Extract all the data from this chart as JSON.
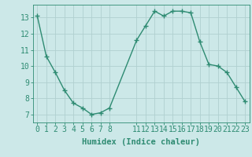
{
  "x": [
    0,
    1,
    2,
    3,
    4,
    5,
    6,
    7,
    8,
    11,
    12,
    13,
    14,
    15,
    16,
    17,
    18,
    19,
    20,
    21,
    22,
    23
  ],
  "y": [
    13.1,
    10.6,
    9.6,
    8.5,
    7.7,
    7.4,
    7.0,
    7.1,
    7.4,
    11.6,
    12.5,
    13.4,
    13.1,
    13.4,
    13.4,
    13.3,
    11.5,
    10.1,
    10.0,
    9.6,
    8.7,
    7.8
  ],
  "line_color": "#2e8b72",
  "marker": "+",
  "marker_size": 4,
  "marker_linewidth": 1.0,
  "line_width": 1.0,
  "bg_color": "#cce8e8",
  "grid_color": "#b0d0d0",
  "xlabel": "Humidex (Indice chaleur)",
  "xlabel_fontsize": 7.5,
  "tick_label_fontsize": 7,
  "ylim": [
    6.5,
    13.8
  ],
  "xlim": [
    -0.5,
    23.5
  ],
  "yticks": [
    7,
    8,
    9,
    10,
    11,
    12,
    13
  ],
  "xticks": [
    0,
    1,
    2,
    3,
    4,
    5,
    6,
    7,
    8,
    11,
    12,
    13,
    14,
    15,
    16,
    17,
    18,
    19,
    20,
    21,
    22,
    23
  ]
}
